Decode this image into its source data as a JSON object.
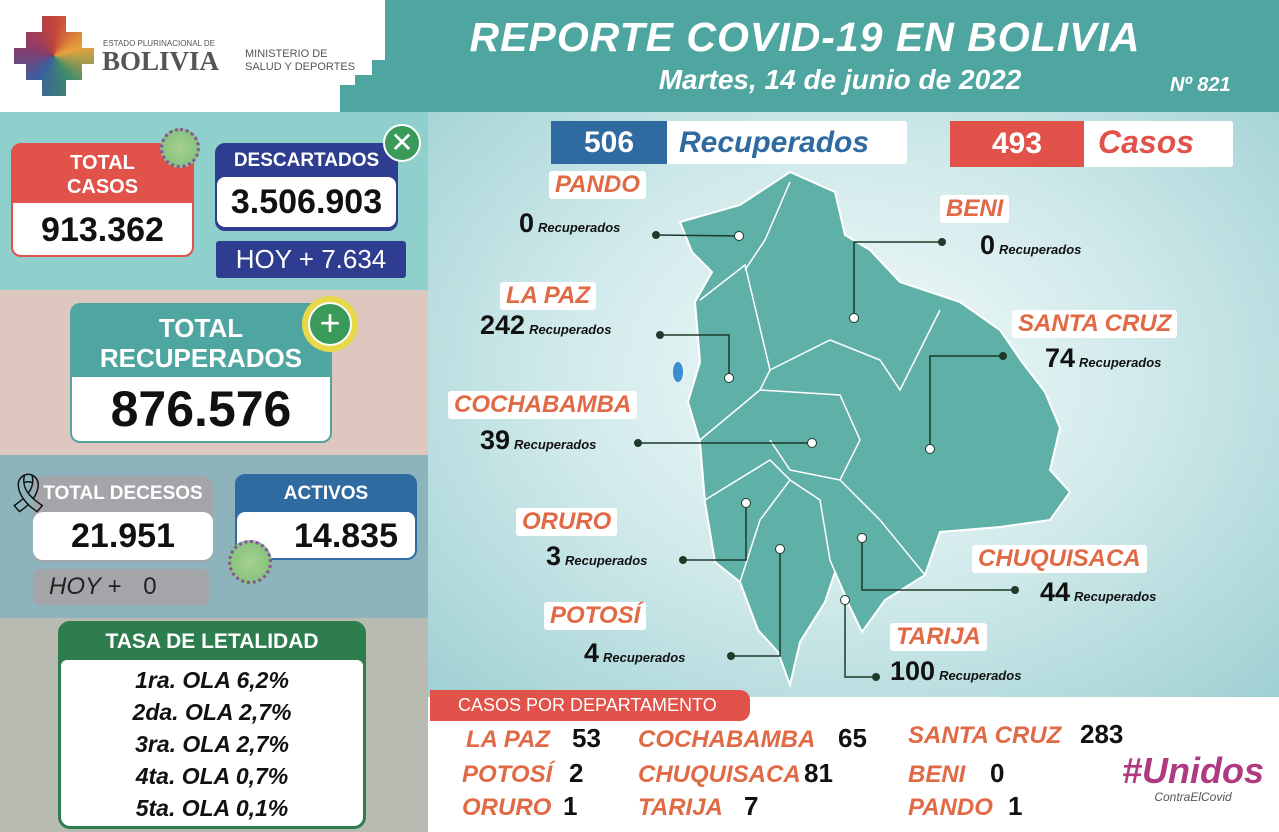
{
  "header": {
    "title": "REPORTE COVID-19 EN BOLIVIA",
    "date": "Martes, 14 de junio de 2022",
    "number": "Nº 821",
    "logo_top": "ESTADO PLURINACIONAL DE",
    "logo_name": "BOLIVIA",
    "ministry_line1": "MINISTERIO DE",
    "ministry_line2": "SALUD Y DEPORTES"
  },
  "total_casos": {
    "label1": "TOTAL",
    "label2": "CASOS",
    "value": "913.362"
  },
  "descartados": {
    "label": "DESCARTADOS",
    "value": "3.506.903",
    "today": "HOY + 7.634"
  },
  "recuperados": {
    "label1": "TOTAL",
    "label2": "RECUPERADOS",
    "value": "876.576"
  },
  "decesos": {
    "label": "TOTAL DECESOS",
    "value": "21.951",
    "today_label": "HOY +",
    "today_value": "0"
  },
  "activos": {
    "label": "ACTIVOS",
    "value": "14.835"
  },
  "letalidad": {
    "title": "TASA DE LETALIDAD",
    "rows": [
      "1ra. OLA 6,2%",
      "2da. OLA 2,7%",
      "3ra. OLA 2,7%",
      "4ta. OLA  0,7%",
      "5ta. OLA  0,1%"
    ]
  },
  "daily": {
    "recuperados_value": "506",
    "recuperados_label": "Recuperados",
    "casos_value": "493",
    "casos_label": "Casos"
  },
  "map": {
    "recovered_word": "Recuperados",
    "departments": [
      {
        "name": "PANDO",
        "recovered": "0"
      },
      {
        "name": "BENI",
        "recovered": "0"
      },
      {
        "name": "LA PAZ",
        "recovered": "242"
      },
      {
        "name": "SANTA CRUZ",
        "recovered": "74"
      },
      {
        "name": "COCHABAMBA",
        "recovered": "39"
      },
      {
        "name": "ORURO",
        "recovered": "3"
      },
      {
        "name": "CHUQUISACA",
        "recovered": "44"
      },
      {
        "name": "POTOSÍ",
        "recovered": "4"
      },
      {
        "name": "TARIJA",
        "recovered": "100"
      }
    ]
  },
  "casos_por_departamento": {
    "title": "CASOS POR DEPARTAMENTO",
    "items": [
      {
        "name": "LA PAZ",
        "value": "53"
      },
      {
        "name": "COCHABAMBA",
        "value": "65"
      },
      {
        "name": "SANTA CRUZ",
        "value": "283"
      },
      {
        "name": "POTOSÍ",
        "value": "2"
      },
      {
        "name": "CHUQUISACA",
        "value": "81"
      },
      {
        "name": "BENI",
        "value": "0"
      },
      {
        "name": "ORURO",
        "value": "1"
      },
      {
        "name": "TARIJA",
        "value": "7"
      },
      {
        "name": "PANDO",
        "value": "1"
      }
    ]
  },
  "campaign": {
    "hashtag": "#Unidos",
    "sub": "ContraElCovid"
  },
  "colors": {
    "teal": "#4fa6a0",
    "red": "#e0524a",
    "navy": "#2e3d8f",
    "blue": "#2f6aa0",
    "green": "#2e7d4f",
    "orange": "#e06a45"
  }
}
